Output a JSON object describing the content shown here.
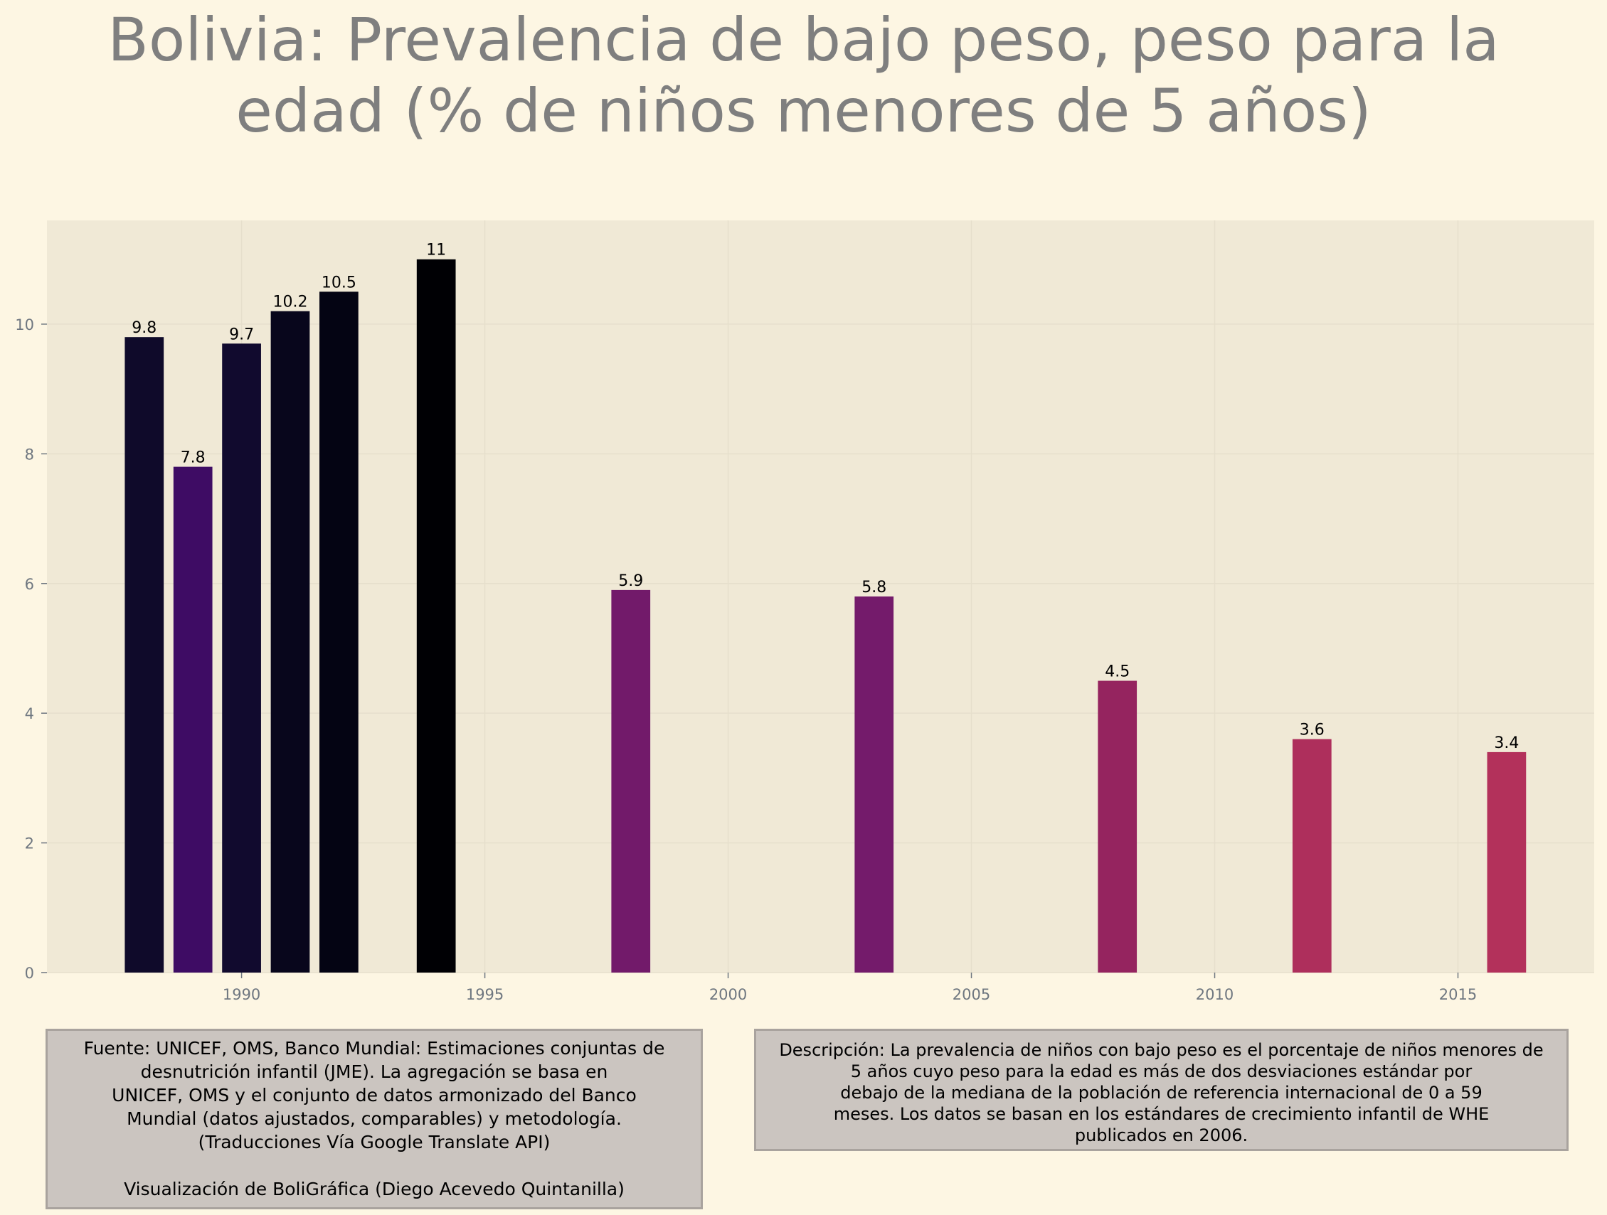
{
  "colors": {
    "background": "#fdf6e3",
    "plot_background": "#f0e9d6",
    "text_muted": "#7f7f7f",
    "tick_color": "#6f7780"
  },
  "chart_data": {
    "type": "bar",
    "title": "Bolivia:  Prevalencia de bajo peso, peso para la\nedad (% de niños menores de 5 años)",
    "xlabel": "",
    "ylabel": "",
    "xlim": [
      1986,
      2017.8
    ],
    "ylim": [
      0,
      11.6
    ],
    "xticks": [
      1990,
      1995,
      2000,
      2005,
      2010,
      2015
    ],
    "yticks": [
      0,
      2,
      4,
      6,
      8,
      10
    ],
    "grid": true,
    "legend": "none",
    "bars": [
      {
        "x": 1988,
        "value": 9.8,
        "label": "9.8",
        "color": "#0f0a2a"
      },
      {
        "x": 1989,
        "value": 7.8,
        "label": "7.8",
        "color": "#3e0c64"
      },
      {
        "x": 1990,
        "value": 9.7,
        "label": "9.7",
        "color": "#110a2e"
      },
      {
        "x": 1991,
        "value": 10.2,
        "label": "10.2",
        "color": "#08061c"
      },
      {
        "x": 1992,
        "value": 10.5,
        "label": "10.5",
        "color": "#040413"
      },
      {
        "x": 1994,
        "value": 11,
        "label": "11",
        "color": "#000004"
      },
      {
        "x": 1998,
        "value": 5.9,
        "label": "5.9",
        "color": "#721a6a"
      },
      {
        "x": 2003,
        "value": 5.8,
        "label": "5.8",
        "color": "#741b6b"
      },
      {
        "x": 2008,
        "value": 4.5,
        "label": "4.5",
        "color": "#95245f"
      },
      {
        "x": 2012,
        "value": 3.6,
        "label": "3.6",
        "color": "#ae2f5c"
      },
      {
        "x": 2016,
        "value": 3.4,
        "label": "3.4",
        "color": "#b3315b"
      }
    ]
  },
  "notes": {
    "source": "Fuente: UNICEF, OMS, Banco Mundial: Estimaciones conjuntas de\ndesnutrición infantil (JME). La agregación se basa en\nUNICEF, OMS y el conjunto de datos armonizado del Banco\nMundial (datos ajustados, comparables) y metodología.\n(Traducciones Vía Google Translate API)\n\nVisualización de BoliGráfica (Diego Acevedo Quintanilla)",
    "description": "Descripción: La prevalencia de niños con bajo peso es el porcentaje de niños menores de\n5 años cuyo peso para la edad es más de dos desviaciones estándar por\ndebajo de la mediana de la población de referencia internacional de 0 a 59\nmeses. Los datos se basan en los estándares de crecimiento infantil de WHE\npublicados en 2006."
  }
}
